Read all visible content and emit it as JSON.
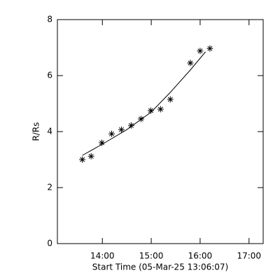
{
  "chart_data": {
    "type": "scatter",
    "xlabel": "Start Time (05-Mar-25 13:06:07)",
    "ylabel": "R/Rs",
    "xlim": [
      13.08,
      17.29
    ],
    "ylim": [
      0,
      8
    ],
    "xticks": [
      {
        "value": 14,
        "label": "14:00"
      },
      {
        "value": 15,
        "label": "15:00"
      },
      {
        "value": 16,
        "label": "16:00"
      },
      {
        "value": 17,
        "label": "17:00"
      }
    ],
    "yticks": [
      0,
      2,
      4,
      6,
      8
    ],
    "series": [
      {
        "marker": "star",
        "color": "#000000",
        "x": [
          13.59,
          13.77,
          13.99,
          14.19,
          14.39,
          14.59,
          14.79,
          14.99,
          15.19,
          15.39,
          15.8,
          16.0,
          16.2
        ],
        "values": [
          3.0,
          3.12,
          3.6,
          3.92,
          4.07,
          4.22,
          4.45,
          4.75,
          4.8,
          5.15,
          6.45,
          6.88,
          6.97
        ]
      },
      {
        "marker": "line",
        "color": "#000000",
        "x": [
          13.59,
          14.0,
          14.5,
          15.0,
          15.39,
          15.8,
          16.11
        ],
        "values": [
          3.15,
          3.55,
          4.07,
          4.7,
          5.4,
          6.2,
          6.85
        ]
      }
    ]
  }
}
